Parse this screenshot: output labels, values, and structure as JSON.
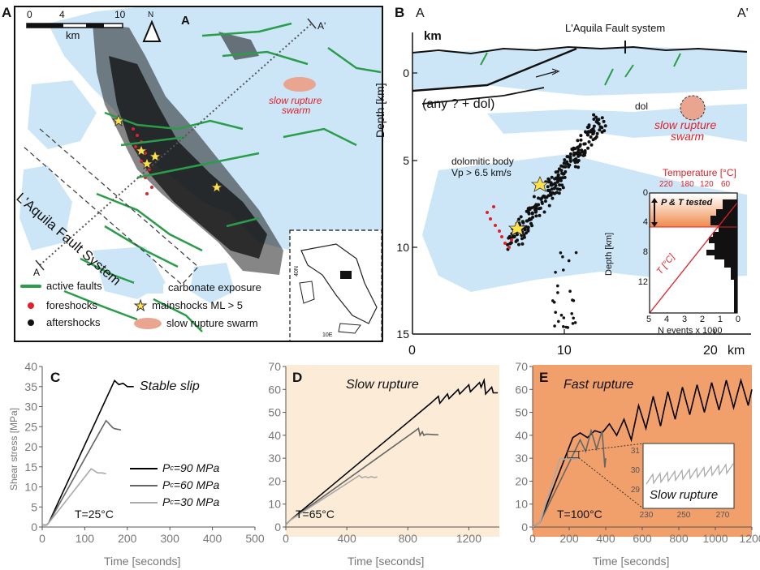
{
  "panelA": {
    "letter": "A",
    "scale": {
      "ticks": [
        "0",
        "4",
        "10"
      ],
      "unit": "km"
    },
    "north": "N",
    "corner_letter": "A",
    "section_start": "A",
    "section_end": "A'",
    "fault_label": "L'Aquila Fault System",
    "swarm_label_1": "slow rupture",
    "swarm_label_2": "swarm",
    "inset_tick_x": "10E",
    "inset_tick_y": "40N",
    "legend": [
      {
        "icon": "green-line",
        "label": "active faults"
      },
      {
        "icon": "blue-box",
        "label": "carbonate exposure"
      },
      {
        "icon": "red-dot",
        "label": "foreshocks"
      },
      {
        "icon": "star",
        "label": "mainshocks ML > 5"
      },
      {
        "icon": "black-dot",
        "label": "aftershocks"
      },
      {
        "icon": "pink-ellipse",
        "label": "slow rupture swarm"
      }
    ],
    "colors": {
      "fault": "#2a9d4a",
      "carbonate": "#cde6f7",
      "foreshock": "#e0212a",
      "swarm": "#e9a590",
      "star": "#ffe14a"
    }
  },
  "panelB": {
    "letter": "B",
    "end_a": "A",
    "end_a2": "A'",
    "km_label": "km",
    "fault_system_label": "L'Aquila Fault system",
    "unit_label": "(any ? + dol)",
    "dol_label": "dol",
    "dolomitic_1": "dolomitic body",
    "dolomitic_2": "Vp > 6.5 km/s",
    "swarm_1": "slow rupture",
    "swarm_2": "swarm",
    "ylabel": "Depth [km]",
    "yticks": [
      "0",
      "5",
      "10",
      "15"
    ],
    "xticks": [
      "0",
      "10",
      "20"
    ],
    "xunit": "km",
    "inset": {
      "top_label": "Temperature [°C]",
      "top_ticks": [
        "220",
        "180",
        "120",
        "60"
      ],
      "ylabel": "Depth [km]",
      "yticks": [
        "0",
        "4",
        "8",
        "12"
      ],
      "xlabel": "N events x 1000",
      "xticks": [
        "5",
        "4",
        "3",
        "2",
        "1",
        "0"
      ],
      "tested_label": "P & T tested",
      "t_label": "T [°C]"
    }
  },
  "panelC": {
    "letter": "C",
    "title": "Stable slip",
    "temp": "T=25°C",
    "ylabel": "Shear stress [MPa]",
    "xlabel": "Time [seconds]",
    "legend": [
      {
        "pc": "P",
        "sub": "c",
        "eq": "=90 MPa"
      },
      {
        "pc": "P",
        "sub": "c",
        "eq": "=60 MPa"
      },
      {
        "pc": "P",
        "sub": "c",
        "eq": "=30 MPa"
      }
    ]
  },
  "panelD": {
    "letter": "D",
    "title": "Slow rupture",
    "temp": "T=65°C",
    "xlabel": "Time [seconds]"
  },
  "panelE": {
    "letter": "E",
    "title": "Fast rupture",
    "temp": "T=100°C",
    "xlabel": "Time [seconds]",
    "inset_label": "Slow rupture"
  },
  "chart_data": [
    {
      "type": "line",
      "panel": "C",
      "xlim": [
        0,
        500
      ],
      "ylim": [
        0,
        40
      ],
      "xticks": [
        0,
        100,
        200,
        300,
        400,
        500
      ],
      "yticks": [
        0,
        5,
        10,
        15,
        20,
        25,
        30,
        35,
        40
      ],
      "series": [
        {
          "name": "Pc=90 MPa",
          "color": "#000000",
          "x": [
            0,
            10,
            15,
            170,
            180,
            190,
            200,
            215
          ],
          "y": [
            0.5,
            0.5,
            1,
            36.5,
            35.5,
            35.8,
            35,
            35
          ]
        },
        {
          "name": "Pc=60 MPa",
          "color": "#666666",
          "x": [
            0,
            10,
            15,
            150,
            155,
            165,
            170,
            185
          ],
          "y": [
            0.5,
            0.5,
            1,
            26.5,
            26,
            24.8,
            24.5,
            24.2
          ]
        },
        {
          "name": "Pc=30 MPa",
          "color": "#aaaaaa",
          "x": [
            0,
            10,
            15,
            115,
            120,
            130,
            140,
            150
          ],
          "y": [
            0.5,
            0.5,
            1,
            14.5,
            14.2,
            13.5,
            13.5,
            13.3
          ]
        }
      ]
    },
    {
      "type": "line",
      "panel": "D",
      "xlim": [
        0,
        1400
      ],
      "ylim": [
        0,
        70
      ],
      "xticks": [
        0,
        400,
        800,
        1200
      ],
      "yticks": [
        0,
        10,
        20,
        30,
        40,
        50,
        60,
        70
      ],
      "series": [
        {
          "name": "Pc=90 MPa",
          "color": "#000000",
          "x": [
            0,
            30,
            950,
            1000,
            1010,
            1060,
            1070,
            1130,
            1140,
            1200,
            1210,
            1270,
            1280,
            1300,
            1310,
            1350,
            1360,
            1390
          ],
          "y": [
            1,
            3,
            54,
            57,
            54,
            58,
            56,
            60,
            58,
            62,
            59,
            63,
            61,
            64,
            58,
            61,
            58.5,
            58.5
          ]
        },
        {
          "name": "Pc=60 MPa",
          "color": "#666666",
          "x": [
            0,
            30,
            850,
            870,
            880,
            895,
            905,
            920,
            1000
          ],
          "y": [
            1,
            3,
            42,
            43,
            40,
            41.5,
            40,
            40.5,
            40.2
          ]
        },
        {
          "name": "Pc=30 MPa",
          "color": "#aaaaaa",
          "x": [
            0,
            30,
            470,
            480,
            500,
            520,
            540,
            560,
            580,
            600
          ],
          "y": [
            1,
            3,
            22,
            22.5,
            21.5,
            22,
            21.5,
            22,
            21.6,
            21.8
          ]
        }
      ]
    },
    {
      "type": "line",
      "panel": "E",
      "xlim": [
        0,
        1200
      ],
      "ylim": [
        0,
        70
      ],
      "xticks": [
        0,
        200,
        400,
        600,
        800,
        1000,
        1200
      ],
      "yticks": [
        0,
        10,
        20,
        30,
        40,
        50,
        60,
        70
      ],
      "series": [
        {
          "name": "Pc=90 MPa",
          "color": "#000000",
          "x": [
            0,
            40,
            220,
            260,
            300,
            340,
            380,
            420,
            460,
            500,
            540,
            580,
            620,
            660,
            700,
            740,
            780,
            820,
            860,
            900,
            940,
            980,
            1020,
            1060,
            1100,
            1140,
            1180,
            1200
          ],
          "y": [
            0,
            2,
            39,
            41,
            39,
            42,
            41,
            45,
            40,
            47,
            38,
            53,
            43,
            57,
            44,
            59,
            47,
            61,
            49,
            62,
            50,
            63,
            51,
            64,
            52,
            64,
            53,
            60
          ]
        },
        {
          "name": "Pc=60 MPa",
          "color": "#666666",
          "x": [
            0,
            40,
            230,
            260,
            290,
            320,
            350,
            380,
            395,
            400
          ],
          "y": [
            0,
            2,
            33,
            38,
            33,
            42,
            34,
            42,
            26,
            30
          ]
        },
        {
          "name": "Pc=30 MPa",
          "color": "#aaaaaa",
          "x": [
            0,
            40,
            150,
            170,
            200,
            230,
            260
          ],
          "y": [
            0,
            2,
            30,
            29.5,
            30.2,
            29.6,
            30
          ]
        }
      ]
    }
  ]
}
